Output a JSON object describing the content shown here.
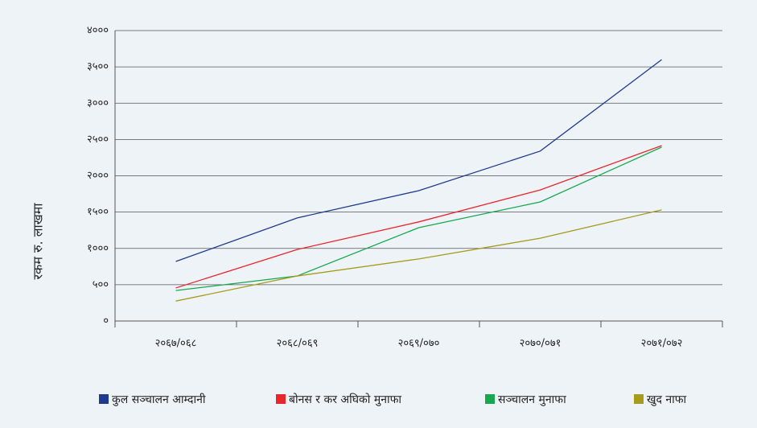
{
  "chart_data": {
    "type": "line",
    "y_label": "रकम रु. लाखमा",
    "categories": [
      "२०६७/०६८",
      "२०६८/०६९",
      "२०६९/०७०",
      "२०७०/०७१",
      "२०७१/०७२"
    ],
    "series": [
      {
        "name": "कुल सञ्चालन आम्दानी",
        "color": "#1f3a8c",
        "values": [
          820,
          1420,
          1795,
          2340,
          3600
        ]
      },
      {
        "name": "बोनस र कर अघिको मुनाफा",
        "color": "#e8262b",
        "values": [
          455,
          985,
          1365,
          1805,
          2415
        ]
      },
      {
        "name": "सञ्चालन मुनाफा",
        "color": "#17a84f",
        "values": [
          420,
          620,
          1285,
          1640,
          2395
        ]
      },
      {
        "name": "खुद नाफा",
        "color": "#a79b1c",
        "values": [
          275,
          620,
          855,
          1140,
          1530
        ]
      }
    ],
    "ylim": [
      0,
      4000
    ],
    "yticks": [
      {
        "value": 0,
        "label": "०"
      },
      {
        "value": 500,
        "label": "५००"
      },
      {
        "value": 1000,
        "label": "१०००"
      },
      {
        "value": 1500,
        "label": "१५००"
      },
      {
        "value": 2000,
        "label": "२०००"
      },
      {
        "value": 2500,
        "label": "२५००"
      },
      {
        "value": 3000,
        "label": "३०००"
      },
      {
        "value": 3500,
        "label": "३५००"
      },
      {
        "value": 4000,
        "label": "४०००"
      }
    ],
    "grid": true,
    "legend": "bottom"
  }
}
